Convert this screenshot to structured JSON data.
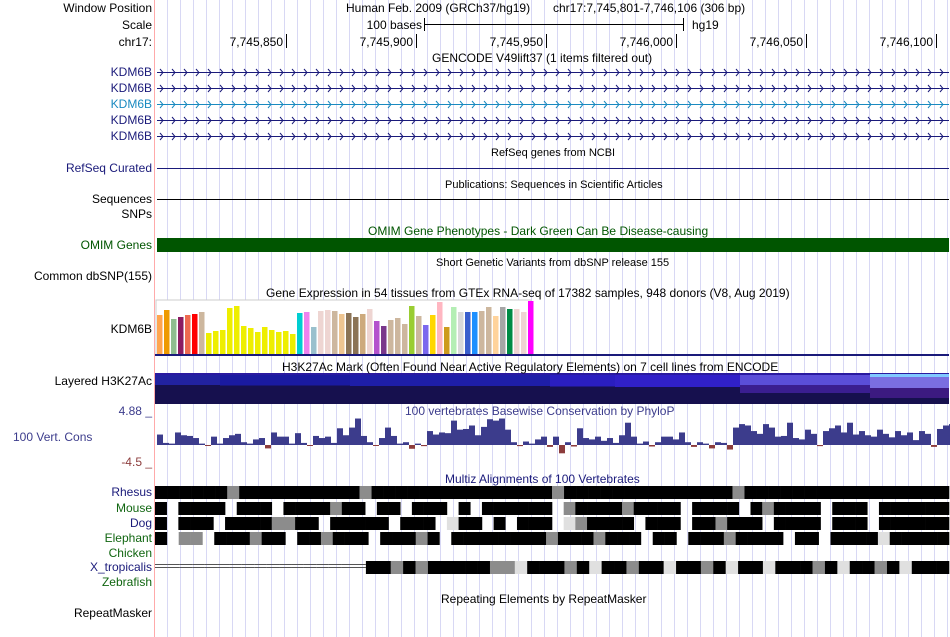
{
  "header": {
    "window_position_label": "Window Position",
    "assembly": "Human Feb. 2009 (GRCh37/hg19)",
    "position": "chr17:7,745,801-7,746,106 (306 bp)",
    "scale_label": "Scale",
    "scale_bar": "100 bases",
    "db": "hg19",
    "chrom_label": "chr17:",
    "ticks": [
      "7,745,850",
      "7,745,900",
      "7,745,950",
      "7,746,000",
      "7,746,050",
      "7,746,100"
    ]
  },
  "gencode": {
    "title": "GENCODE V49lift37 (1 items filtered out)",
    "genes": [
      "KDM6B",
      "KDM6B",
      "KDM6B",
      "KDM6B",
      "KDM6B"
    ]
  },
  "refseq": {
    "subtitle": "RefSeq genes from NCBI",
    "label": "RefSeq Curated"
  },
  "pubs": {
    "subtitle": "Publications: Sequences in Scientific Articles",
    "label": "Sequences"
  },
  "snps": {
    "label": "SNPs"
  },
  "omim": {
    "title": "OMIM Gene Phenotypes - Dark Green Can Be Disease-causing",
    "label": "OMIM Genes",
    "color": "#005500"
  },
  "dbsnp": {
    "subtitle": "Short Genetic Variants from dbSNP release 155",
    "label": "Common dbSNP(155)"
  },
  "gtex": {
    "title": "Gene Expression in 54 tissues from GTEx RNA-seq of 17382 samples, 948 donors (V8, Aug 2019)",
    "label": "KDM6B",
    "values": [
      39,
      44,
      35,
      37,
      39,
      40,
      42,
      21,
      23,
      24,
      46,
      48,
      28,
      26,
      22,
      27,
      24,
      22,
      23,
      20,
      41,
      42,
      27,
      43,
      44,
      43,
      40,
      41,
      37,
      40,
      45,
      33,
      28,
      34,
      36,
      30,
      48,
      38,
      29,
      39,
      52,
      27,
      47,
      42,
      42,
      42,
      43,
      47,
      38,
      47,
      45,
      45,
      42,
      53
    ],
    "colors": [
      "#FFA54F",
      "#EE9A00",
      "#8FBC8F",
      "#8B1C62",
      "#EE6A50",
      "#FF0000",
      "#CDB79E",
      "#EEEE00",
      "#EEEE00",
      "#EEEE00",
      "#EEEE00",
      "#EEEE00",
      "#EEEE00",
      "#EEEE00",
      "#EEEE00",
      "#EEEE00",
      "#EEEE00",
      "#EEEE00",
      "#EEEE00",
      "#EEEE00",
      "#00CED1",
      "#EE82EE",
      "#9AC0CD",
      "#EED5D2",
      "#EED5D2",
      "#CDB79E",
      "#EEC591",
      "#8B7355",
      "#8B7355",
      "#CDAA7D",
      "#EED5D2",
      "#B452CD",
      "#7A378B",
      "#CDB79E",
      "#CDB79E",
      "#CDB79E",
      "#9ACD32",
      "#CDB79E",
      "#7B68EE",
      "#FFD700",
      "#FFB6C1",
      "#CD9B1D",
      "#B4EEB4",
      "#D9D9D9",
      "#3A5FCD",
      "#1E90FF",
      "#CDB79E",
      "#CDB79E",
      "#FFD39B",
      "#A6A6A6",
      "#008B45",
      "#EED5D2",
      "#EED5D2",
      "#FF00FF"
    ]
  },
  "h3k27ac": {
    "title": "H3K27Ac Mark (Often Found Near Active Regulatory Elements) on 7 cell lines from ENCODE",
    "label": "Layered H3K27Ac"
  },
  "cons": {
    "title": "100 vertebrates Basewise Conservation by PhyloP",
    "label": "100 Vert. Cons",
    "max": "4.88 _",
    "min": "-4.5 _",
    "pos_color": "#3c3c8c",
    "neg_color": "#8c3c3c",
    "values": [
      1.5,
      0.3,
      0.2,
      1.8,
      1.4,
      1.3,
      1.0,
      0.2,
      -0.2,
      1.2,
      0.2,
      1.0,
      1.4,
      1.6,
      0.4,
      0.2,
      0.8,
      1.0,
      -0.9,
      1.8,
      1.2,
      1.2,
      0.2,
      1.7,
      0.3,
      -0.2,
      1.3,
      1.0,
      1.2,
      0.3,
      2.4,
      1.4,
      2.5,
      3.8,
      1.3,
      0.4,
      -0.1,
      1.0,
      2.5,
      1.3,
      0.2,
      0.4,
      -1.0,
      0.2,
      -0.3,
      2.0,
      1.5,
      1.8,
      1.7,
      3.5,
      2.2,
      2.3,
      2.8,
      1.4,
      2.6,
      3.7,
      3.5,
      3.8,
      2.2,
      0.4,
      -0.3,
      0.5,
      0.2,
      0.8,
      1.2,
      -0.5,
      1.2,
      -2.2,
      0.4,
      -0.4,
      2.4,
      1.0,
      0.8,
      1.2,
      0.6,
      1.0,
      0.3,
      1.4,
      3.2,
      1.2,
      0.2,
      0.5,
      -0.4,
      0.4,
      1.2,
      1.2,
      0.8,
      1.8,
      0.4,
      -0.5,
      0.4,
      0.2,
      -0.9,
      0.4,
      0.3,
      -1.2,
      2.5,
      3.0,
      2.8,
      2.0,
      1.6,
      3.0,
      2.5,
      1.2,
      1.3,
      3.2,
      1.0,
      0.8,
      2.2,
      1.6,
      -0.3,
      2.0,
      2.4,
      2.8,
      1.8,
      3.2,
      1.5,
      2.0,
      1.4,
      1.2,
      2.2,
      1.6,
      1.1,
      2.0,
      1.4,
      1.8,
      0.7,
      2.0,
      1.6,
      -0.5,
      2.3,
      2.8,
      3.0,
      2.7,
      3.2,
      2.5
    ]
  },
  "multiz": {
    "title": "Multiz Alignments of 100 Vertebrates",
    "species": [
      {
        "name": "Rhesus",
        "color": "#1a1a7a",
        "pattern": "BBBBBBGBBBBBBBBBBGBBBBBBBBBBBBBBBGBBBBBBBBBBBBBBGBBBBBBBBBBBBBBBBB"
      },
      {
        "name": "Mouse",
        "color": "#116611",
        "pattern": "B BBBB BBB BBBBGBB BB BBB B BBBBBB GBBBBGBBBB BBBB BGBBBB BBB BBBBBB"
      },
      {
        "name": "Dog",
        "color": "#1a1a7a",
        "pattern": "B BBB BBBBGGBB BBBBB BBB LBB B BBB LGBBBB BBB BBGBBB BBBB BBB BBBBBB"
      },
      {
        "name": "Elephant",
        "color": "#116611",
        "pattern": "B GG BBBGBB BBGBBB BBBGB BBBBBBBBGBBBGBBB BB BBBGBBBB BB BBBBLBBBBB"
      },
      {
        "name": "Chicken",
        "color": "#116611",
        "pattern": "                                                                  "
      },
      {
        "name": "X_tropicalis",
        "color": "#1a1a7a",
        "pattern": "=================BBGBGBBBBBGGLBBBGBLBBGBBLBBGBLBBLBBBGBLBBGBLBBB"
      },
      {
        "name": "Zebrafish",
        "color": "#116611",
        "pattern": "                                                                  "
      }
    ]
  },
  "repeats": {
    "subtitle": "Repeating Elements by RepeatMasker",
    "label": "RepeatMasker"
  }
}
